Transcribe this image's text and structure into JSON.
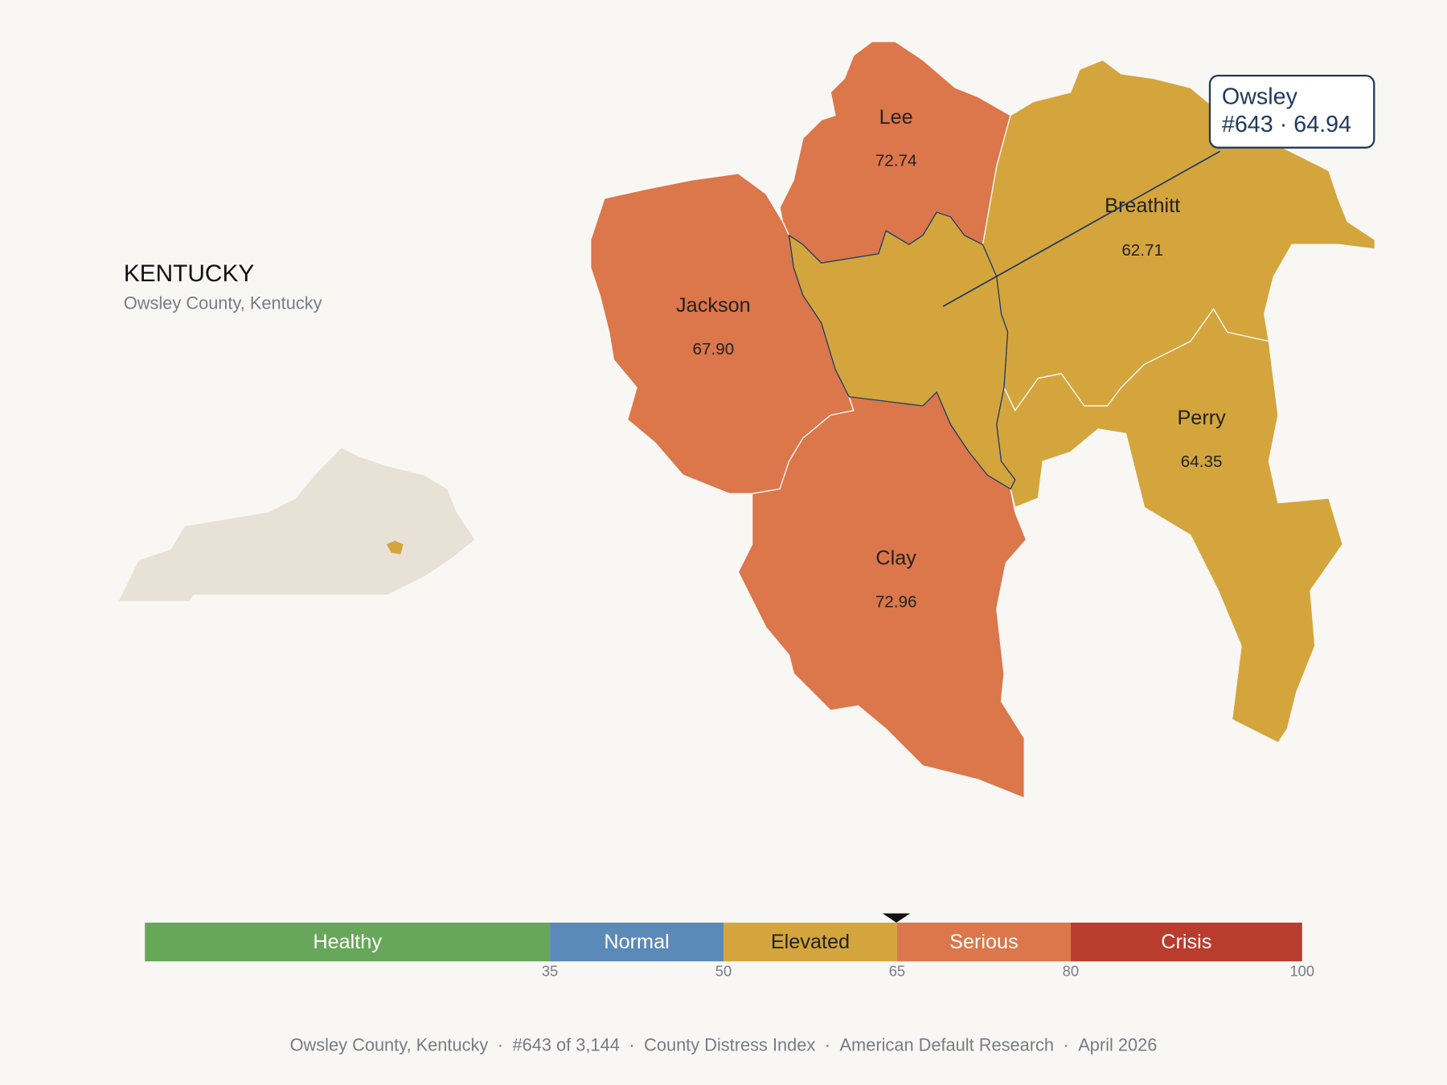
{
  "state": {
    "title": "KENTUCKY",
    "subtitle": "Owsley County, Kentucky"
  },
  "counties": [
    {
      "name": "Lee",
      "value": 72.74
    },
    {
      "name": "Jackson",
      "value": 67.9,
      "value_label": "67.90"
    },
    {
      "name": "Clay",
      "value": 72.96
    },
    {
      "name": "Breathitt",
      "value": 62.71
    },
    {
      "name": "Perry",
      "value": 64.35
    },
    {
      "name": "Owsley",
      "value": 64.94
    }
  ],
  "tooltip": {
    "rank": "#643",
    "separator": "·"
  },
  "legend": {
    "range": [
      0,
      100
    ],
    "ticks": [
      35,
      50,
      65,
      80,
      100
    ],
    "bands": [
      {
        "label": "Healthy",
        "color": "#67a759"
      },
      {
        "label": "Normal",
        "color": "#5b89b8"
      },
      {
        "label": "Elevated",
        "color": "#d4a53c"
      },
      {
        "label": "Serious",
        "color": "#dc764b"
      },
      {
        "label": "Crisis",
        "color": "#b93c2d"
      }
    ]
  },
  "footer": {
    "items": [
      "Owsley County, Kentucky",
      "#643 of 3,144",
      "County Distress Index",
      "American Default Research",
      "April 2026"
    ],
    "separator": "·"
  }
}
